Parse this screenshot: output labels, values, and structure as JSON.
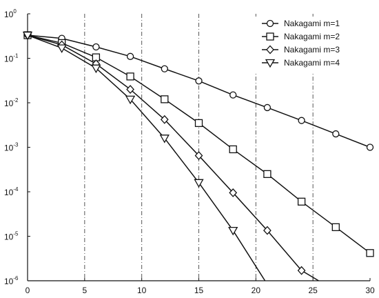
{
  "chart_data": {
    "type": "line",
    "title": "",
    "xlabel": "",
    "ylabel": "",
    "x_ticks": [
      "0",
      "5",
      "10",
      "15",
      "20",
      "25",
      "30"
    ],
    "xlim": [
      0,
      30
    ],
    "y_scale": "log",
    "ylim": [
      1e-06,
      1
    ],
    "y_tick_exponents": [
      "0",
      "-1",
      "-2",
      "-3",
      "-4",
      "-5",
      "-6"
    ],
    "y_tick_base": "10",
    "grid": "vertical dash-dot lines",
    "legend_position": "top-right",
    "series": [
      {
        "name": "Nakagami m=1",
        "marker": "circle",
        "x": [
          0,
          3,
          6,
          9,
          12,
          15,
          18,
          21,
          24,
          27,
          30
        ],
        "y": [
          0.33,
          0.28,
          0.18,
          0.11,
          0.058,
          0.031,
          0.015,
          0.0078,
          0.004,
          0.002,
          0.001
        ]
      },
      {
        "name": "Nakagami m=2",
        "marker": "square",
        "x": [
          0,
          3,
          6,
          9,
          12,
          15,
          18,
          21,
          24,
          27,
          30
        ],
        "y": [
          0.33,
          0.22,
          0.105,
          0.039,
          0.012,
          0.0035,
          0.0009,
          0.00025,
          6e-05,
          1.6e-05,
          4.2e-06
        ]
      },
      {
        "name": "Nakagami m=3",
        "marker": "diamond",
        "x": [
          0,
          3,
          6,
          9,
          12,
          15,
          18,
          21,
          24,
          25.5
        ],
        "y": [
          0.33,
          0.2,
          0.075,
          0.02,
          0.0042,
          0.00065,
          9.5e-05,
          1.35e-05,
          1.7e-06,
          1e-06
        ]
      },
      {
        "name": "Nakagami m=4",
        "marker": "triangle-down",
        "x": [
          0,
          3,
          6,
          9,
          12,
          15,
          18,
          20.8
        ],
        "y": [
          0.33,
          0.17,
          0.06,
          0.012,
          0.0016,
          0.00016,
          1.35e-05,
          1e-06
        ]
      }
    ]
  }
}
